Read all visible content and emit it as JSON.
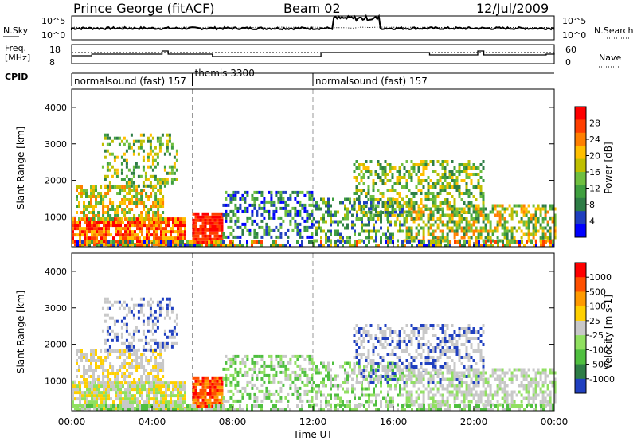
{
  "header": {
    "station": "Prince George (fitACF)",
    "beam": "Beam 02",
    "date": "12/Jul/2009"
  },
  "top_panels": {
    "nsky_label": "N.Sky",
    "nsky_ticks": [
      "10^5",
      "10^0"
    ],
    "nsearch_label": "N.Search",
    "nsearch_ticks": [
      "10^5",
      "10^0"
    ],
    "freq_label_line1": "Freq.",
    "freq_label_line2": "[MHz]",
    "freq_ticks": [
      "18",
      "8"
    ],
    "nave_label": "Nave",
    "nave_ticks": [
      "60",
      "0"
    ],
    "cpid_label": "CPID",
    "cpid_segments": [
      {
        "label": "normalsound (fast) 157",
        "start_hour": 0
      },
      {
        "label": "themis 3300",
        "start_hour": 6
      },
      {
        "label": "normalsound (fast) 157",
        "start_hour": 12
      }
    ]
  },
  "power_panel": {
    "ylabel": "Slant Range [km]",
    "y_ticks": [
      "4000",
      "3000",
      "2000",
      "1000"
    ],
    "colorbar_label": "Power [dB]",
    "colorbar_ticks": [
      "28",
      "24",
      "20",
      "16",
      "12",
      "8",
      "4"
    ],
    "colors": [
      "#0000ff",
      "#1f3fbf",
      "#2e7d46",
      "#3f9f3f",
      "#6fbf3f",
      "#bfbf00",
      "#ffbf00",
      "#ff7f00",
      "#ff3f00",
      "#ff0000"
    ]
  },
  "velocity_panel": {
    "ylabel": "Slant Range [km]",
    "y_ticks": [
      "4000",
      "3000",
      "2000",
      "1000"
    ],
    "colorbar_label": "Velocity [m s-1]",
    "colorbar_ticks": [
      "1000",
      "500",
      "100",
      "25",
      "-25",
      "-100",
      "-500",
      "-1000"
    ],
    "colors": [
      "#2040c0",
      "#2e7d46",
      "#4fbf3f",
      "#90e060",
      "#c8c8c8",
      "#ffd000",
      "#ff9a00",
      "#ff5000",
      "#ff0000"
    ]
  },
  "x_axis": {
    "ticks": [
      "00:00",
      "04:00",
      "08:00",
      "12:00",
      "16:00",
      "20:00",
      "00:00"
    ],
    "label": "Time UT"
  },
  "chart_data": {
    "type": "heatmap",
    "title": "Prince George (fitACF)",
    "x_range_hours": [
      0,
      24
    ],
    "y_range_km": [
      180,
      4500
    ],
    "x_label": "Time UT",
    "y_label": "Slant Range [km]",
    "panels": [
      {
        "name": "Power [dB]",
        "range": [
          0,
          30
        ]
      },
      {
        "name": "Velocity [m s-1]",
        "range": [
          -1000,
          1000
        ]
      }
    ]
  }
}
